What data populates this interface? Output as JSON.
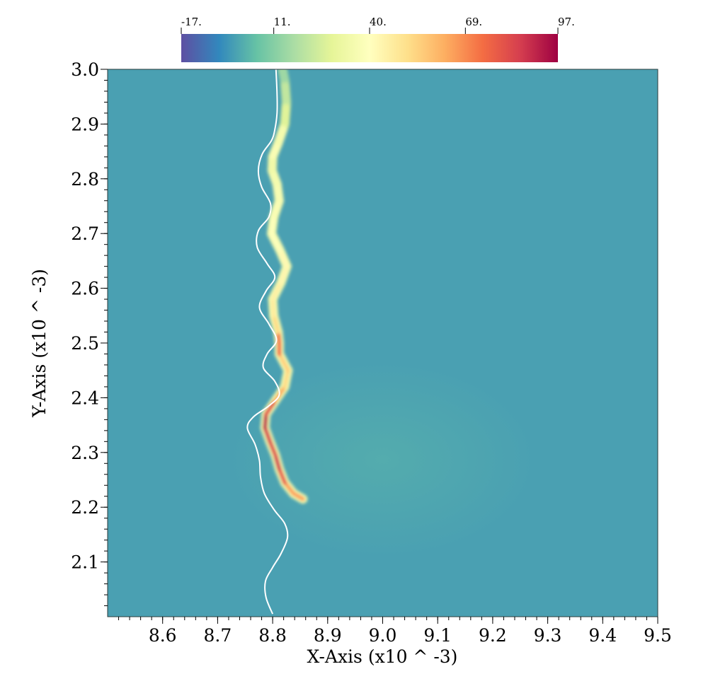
{
  "chart_data": {
    "type": "heatmap",
    "title": "",
    "xlabel": "X-Axis (x10 ^ -3)",
    "ylabel": "Y-Axis (x10 ^ -3)",
    "xlim": [
      8.5,
      9.5
    ],
    "ylim": [
      2.0,
      3.0
    ],
    "x_ticks": [
      "8.6",
      "8.7",
      "8.8",
      "8.9",
      "9.0",
      "9.1",
      "9.2",
      "9.3",
      "9.4",
      "9.5"
    ],
    "y_ticks": [
      "2.1",
      "2.2",
      "2.3",
      "2.4",
      "2.5",
      "2.6",
      "2.7",
      "2.8",
      "2.9",
      "3.0"
    ],
    "colorbar": {
      "range": [
        -17,
        97
      ],
      "colormap": "Spectral (reversed)",
      "tick_labels": [
        "-17.",
        "11.",
        "40.",
        "69.",
        "97."
      ],
      "tick_values": [
        -17,
        11,
        40,
        69,
        97
      ],
      "placement": "top"
    },
    "background_value": 5,
    "white_contour": [
      [
        8.8,
        2.005
      ],
      [
        8.788,
        2.035
      ],
      [
        8.787,
        2.065
      ],
      [
        8.8,
        2.09
      ],
      [
        8.815,
        2.115
      ],
      [
        8.827,
        2.145
      ],
      [
        8.822,
        2.17
      ],
      [
        8.803,
        2.195
      ],
      [
        8.785,
        2.225
      ],
      [
        8.778,
        2.255
      ],
      [
        8.776,
        2.285
      ],
      [
        8.768,
        2.315
      ],
      [
        8.754,
        2.345
      ],
      [
        8.765,
        2.365
      ],
      [
        8.793,
        2.385
      ],
      [
        8.812,
        2.405
      ],
      [
        8.804,
        2.43
      ],
      [
        8.783,
        2.455
      ],
      [
        8.79,
        2.48
      ],
      [
        8.807,
        2.505
      ],
      [
        8.793,
        2.535
      ],
      [
        8.776,
        2.565
      ],
      [
        8.788,
        2.595
      ],
      [
        8.804,
        2.62
      ],
      [
        8.79,
        2.645
      ],
      [
        8.772,
        2.675
      ],
      [
        8.774,
        2.705
      ],
      [
        8.793,
        2.73
      ],
      [
        8.796,
        2.755
      ],
      [
        8.78,
        2.785
      ],
      [
        8.774,
        2.815
      ],
      [
        8.781,
        2.845
      ],
      [
        8.798,
        2.87
      ],
      [
        8.804,
        2.89
      ],
      [
        8.808,
        2.92
      ],
      [
        8.808,
        2.955
      ],
      [
        8.806,
        3.0
      ]
    ],
    "front_band": [
      [
        8.855,
        2.215,
        70
      ],
      [
        8.838,
        2.225,
        60
      ],
      [
        8.822,
        2.245,
        70
      ],
      [
        8.812,
        2.27,
        88
      ],
      [
        8.805,
        2.295,
        85
      ],
      [
        8.795,
        2.32,
        80
      ],
      [
        8.786,
        2.345,
        90
      ],
      [
        8.788,
        2.37,
        92
      ],
      [
        8.805,
        2.395,
        70
      ],
      [
        8.822,
        2.42,
        55
      ],
      [
        8.828,
        2.45,
        50
      ],
      [
        8.812,
        2.48,
        60
      ],
      [
        8.812,
        2.5,
        88
      ],
      [
        8.81,
        2.52,
        60
      ],
      [
        8.802,
        2.55,
        45
      ],
      [
        8.8,
        2.58,
        50
      ],
      [
        8.815,
        2.61,
        42
      ],
      [
        8.826,
        2.64,
        45
      ],
      [
        8.813,
        2.67,
        40
      ],
      [
        8.798,
        2.7,
        38
      ],
      [
        8.802,
        2.73,
        40
      ],
      [
        8.812,
        2.76,
        35
      ],
      [
        8.808,
        2.79,
        38
      ],
      [
        8.799,
        2.815,
        32
      ],
      [
        8.8,
        2.84,
        35
      ],
      [
        8.81,
        2.865,
        40
      ],
      [
        8.822,
        2.9,
        30
      ],
      [
        8.825,
        2.94,
        25
      ],
      [
        8.822,
        2.98,
        18
      ],
      [
        8.818,
        3.0,
        12
      ]
    ]
  }
}
